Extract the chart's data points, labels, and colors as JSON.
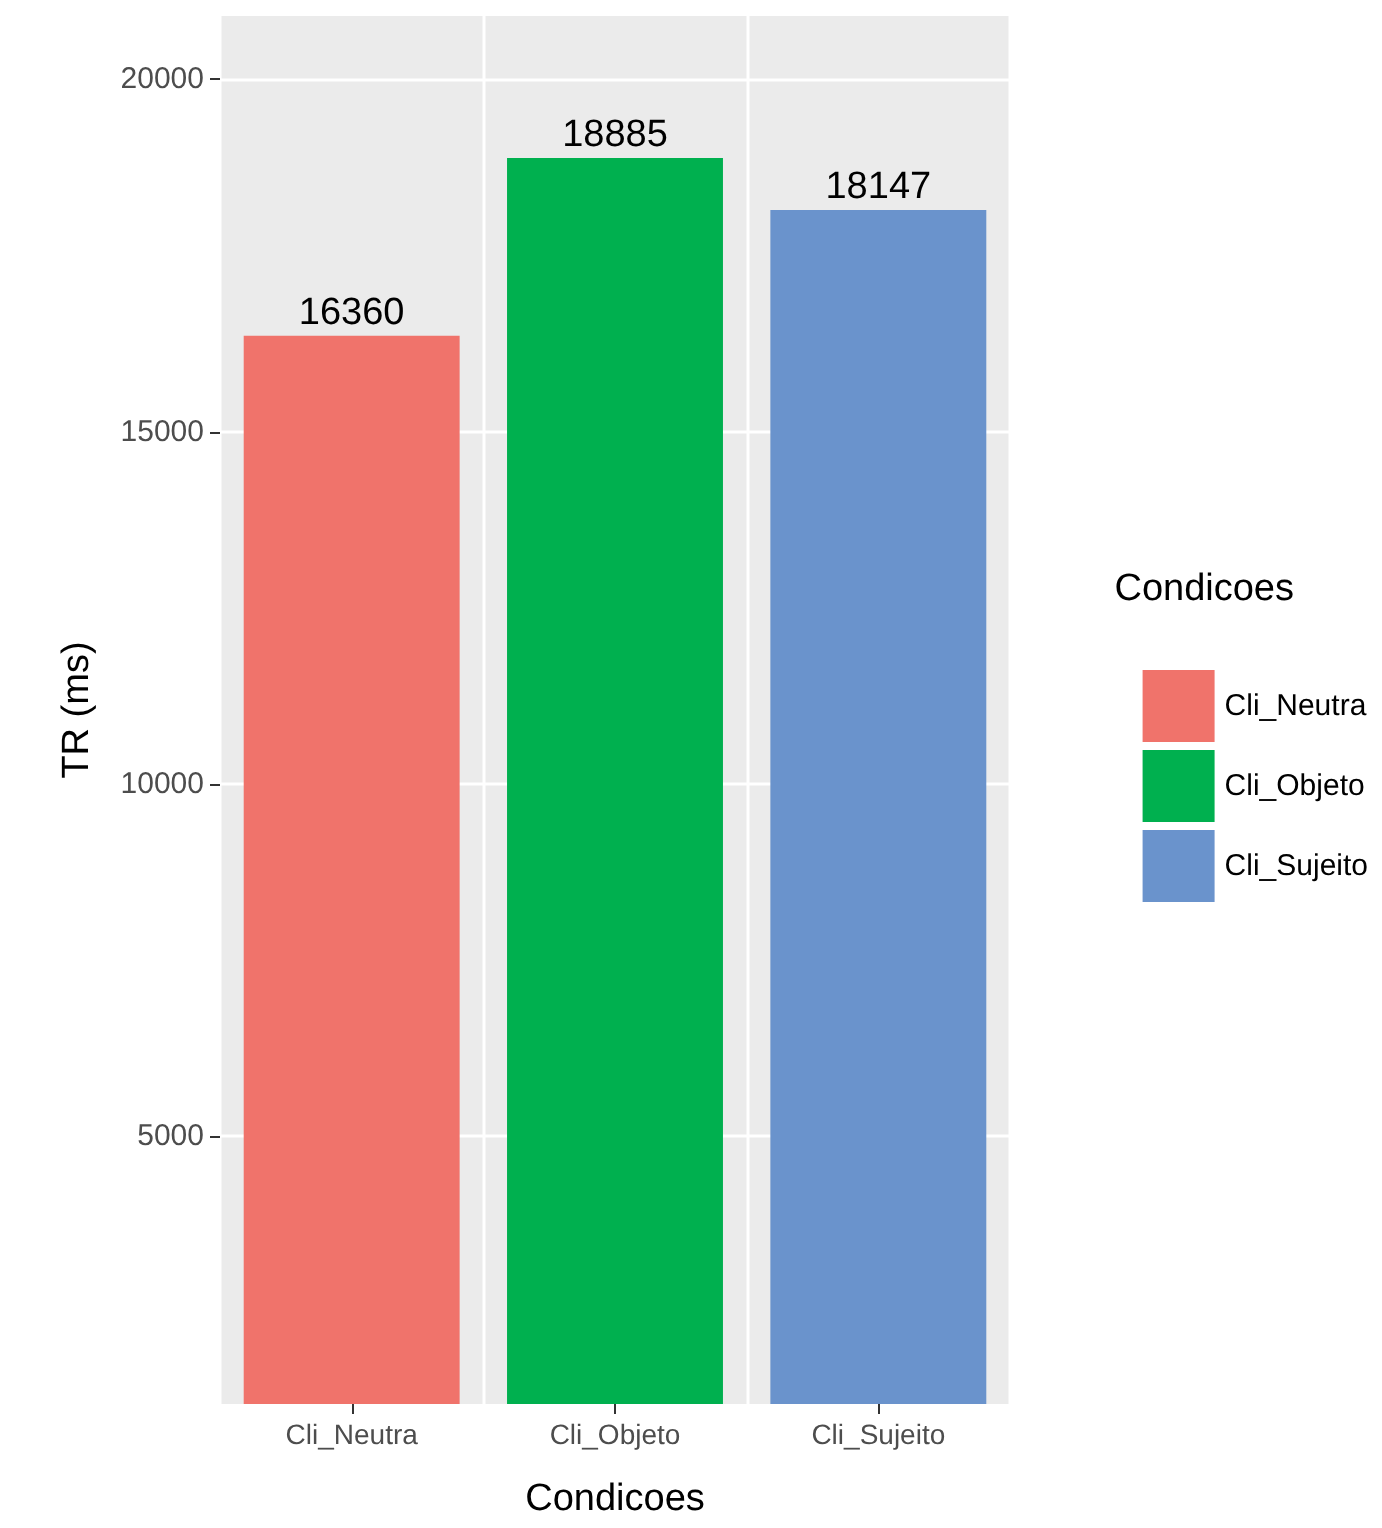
{
  "chart_data": {
    "type": "bar",
    "xlabel": "Condicoes",
    "ylabel": "TR (ms)",
    "legend_title": "Condicoes",
    "categories": [
      "Cli_Neutra",
      "Cli_Objeto",
      "Cli_Sujeito"
    ],
    "series": [
      {
        "name": "Cli_Neutra",
        "color": "#f0736b",
        "values": [
          16360,
          null,
          null
        ]
      },
      {
        "name": "Cli_Objeto",
        "color": "#00b04f",
        "values": [
          null,
          18885,
          null
        ]
      },
      {
        "name": "Cli_Sujeito",
        "color": "#6a93cc",
        "values": [
          null,
          null,
          18147
        ]
      }
    ],
    "ylim": [
      1200,
      20900
    ],
    "yticks": [
      5000,
      10000,
      15000,
      20000
    ],
    "grid": true,
    "legend": "right",
    "data_labels": true
  }
}
